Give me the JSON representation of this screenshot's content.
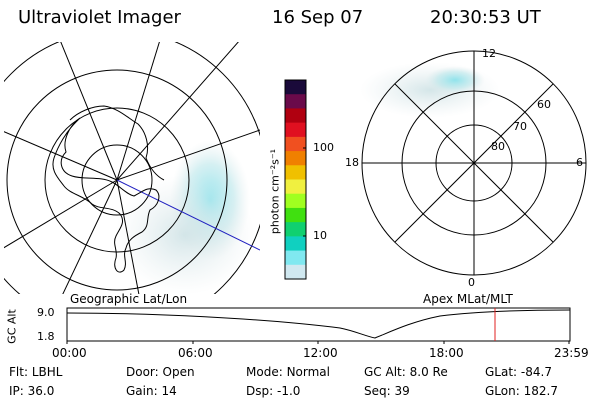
{
  "header": {
    "instrument": "Ultraviolet Imager",
    "date": "16 Sep 07",
    "time": "20:30:53 UT"
  },
  "left_panel": {
    "caption": "Geographic Lat/Lon"
  },
  "right_panel": {
    "caption": "Apex MLat/MLT",
    "mlt_labels": {
      "top": "12",
      "left": "18",
      "right": "6",
      "bottom": "0"
    },
    "lat_labels": [
      "60",
      "70",
      "80"
    ]
  },
  "colorbar": {
    "unit_label": "photon cm⁻²s⁻¹",
    "ticks": [
      "100",
      "10"
    ],
    "colors": [
      "#1a0a3a",
      "#6a0a4a",
      "#b00010",
      "#e01020",
      "#f05020",
      "#f08000",
      "#f0c000",
      "#f0f040",
      "#a0ff20",
      "#40e010",
      "#10d070",
      "#10d0c0",
      "#80e8f0",
      "#d0e8f0"
    ]
  },
  "altitude_strip": {
    "ylabel": "GC Alt",
    "ymax": "9.0",
    "ymin": "1.8",
    "time_ticks": [
      "00:00",
      "06:00",
      "12:00",
      "18:00",
      "23:59"
    ],
    "marker_color": "#e02020"
  },
  "info_rows": [
    [
      {
        "label": "Flt:",
        "value": "LBHL"
      },
      {
        "label": "Door:",
        "value": "Open"
      },
      {
        "label": "Mode:",
        "value": "Normal"
      },
      {
        "label": "GC Alt:",
        "value": "8.0 Re"
      },
      {
        "label": "GLat:",
        "value": "-84.7"
      }
    ],
    [
      {
        "label": "IP:",
        "value": "36.0"
      },
      {
        "label": "Gain:",
        "value": "14"
      },
      {
        "label": "Dsp:",
        "value": "-1.0"
      },
      {
        "label": "Seq:",
        "value": "39"
      },
      {
        "label": "GLon:",
        "value": "182.7"
      }
    ]
  ]
}
